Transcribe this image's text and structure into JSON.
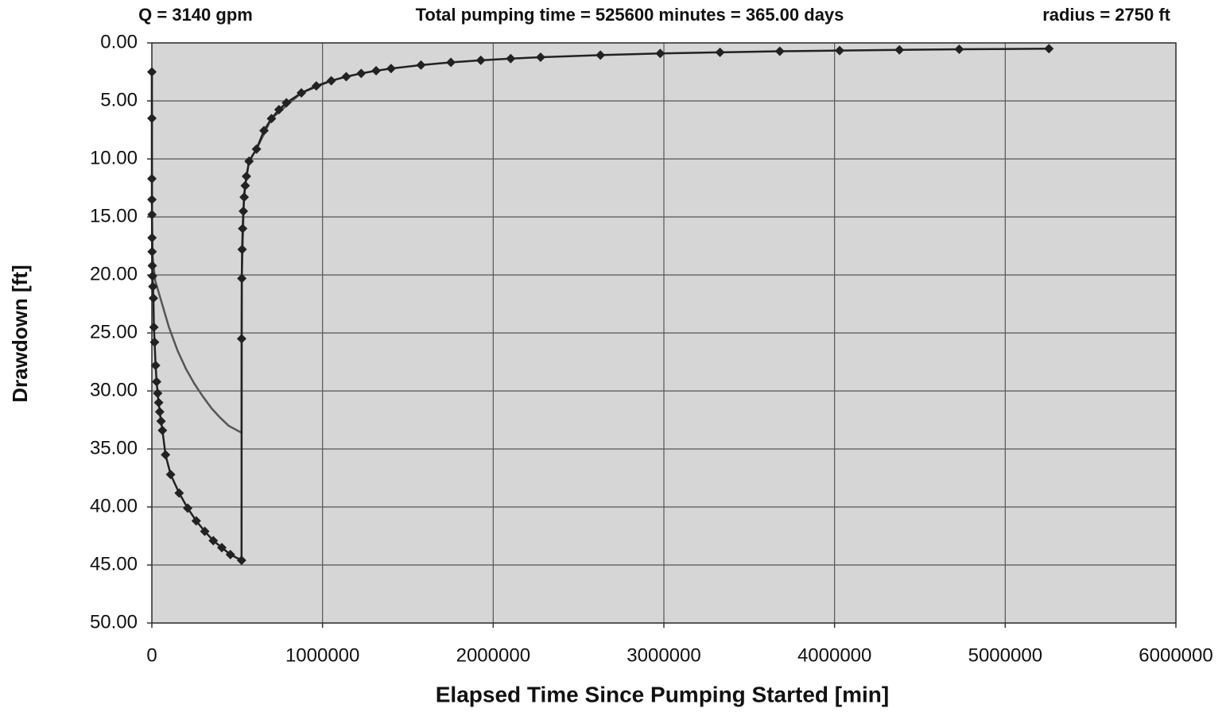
{
  "chart_data": {
    "type": "line",
    "annotations": [
      "Q = 3140 gpm",
      "Total pumping time = 525600 minutes = 365.00 days",
      "radius = 2750 ft"
    ],
    "xlabel": "Elapsed Time Since Pumping Started [min]",
    "ylabel": "Drawdown [ft]",
    "xlim": [
      0,
      6000000
    ],
    "xticks": [
      0,
      1000000,
      2000000,
      3000000,
      4000000,
      5000000,
      6000000
    ],
    "ylim": [
      0,
      50
    ],
    "y_reversed": true,
    "yticks": [
      {
        "value": 0,
        "label": "0.00"
      },
      {
        "value": 5,
        "label": "5.00"
      },
      {
        "value": 10,
        "label": "10.00"
      },
      {
        "value": 15,
        "label": "15.00"
      },
      {
        "value": 20,
        "label": "20.00"
      },
      {
        "value": 25,
        "label": "25.00"
      },
      {
        "value": 30,
        "label": "30.00"
      },
      {
        "value": 35,
        "label": "35.00"
      },
      {
        "value": 40,
        "label": "40.00"
      },
      {
        "value": 45,
        "label": "45.00"
      },
      {
        "value": 50,
        "label": "50.00"
      }
    ],
    "grid": true,
    "background": "#d6d6d6",
    "series": [
      {
        "color": "#222222",
        "marker": "diamond",
        "x": [
          50,
          100,
          200,
          400,
          700,
          1000,
          1500,
          2500,
          4000,
          6000,
          9000,
          12000,
          16000,
          22000,
          28000,
          34000,
          40000,
          46000,
          54000,
          62000,
          80000,
          110000,
          160000,
          210000,
          260000,
          310000,
          360000,
          410000,
          460000,
          525600,
          526000,
          527000,
          529000,
          532000,
          536000,
          541000,
          547000,
          554000,
          569400,
          613200,
          657000,
          700800,
          744600,
          788400,
          876000,
          963600,
          1051200,
          1138800,
          1226400,
          1314000,
          1401600,
          1576800,
          1752000,
          1927200,
          2102400,
          2277600,
          2628000,
          2978400,
          3328800,
          3679200,
          4029600,
          4380000,
          4730400,
          5256000
        ],
        "values": [
          2.5,
          6.5,
          11.7,
          13.5,
          14.8,
          16.8,
          18,
          19.2,
          20.1,
          21,
          22,
          24.5,
          25.8,
          27.8,
          29.2,
          30.2,
          31,
          31.8,
          32.6,
          33.4,
          35.5,
          37.2,
          38.8,
          40.1,
          41.2,
          42.1,
          42.9,
          43.5,
          44.1,
          44.6,
          25.5,
          20.3,
          17.8,
          16,
          14.5,
          13.3,
          12.3,
          11.5,
          10.2,
          9.15,
          7.56,
          6.52,
          5.75,
          5.16,
          4.31,
          3.71,
          3.26,
          2.91,
          2.63,
          2.4,
          2.21,
          1.91,
          1.68,
          1.5,
          1.35,
          1.23,
          1.05,
          0.91,
          0.81,
          0.72,
          0.66,
          0.6,
          0.55,
          0.5
        ]
      },
      {
        "color": "#555555",
        "marker": "none",
        "x": [
          0,
          1000,
          5000,
          20000,
          50000,
          100000,
          150000,
          200000,
          250000,
          300000,
          350000,
          400000,
          450000,
          525600,
          527000,
          540000,
          569400,
          613200,
          700800,
          876000,
          1051200
        ],
        "values": [
          2.5,
          15,
          18.5,
          20.5,
          22,
          24.5,
          26.5,
          28.1,
          29.4,
          30.5,
          31.5,
          32.3,
          33,
          33.6,
          20,
          13,
          10.2,
          9.15,
          6.52,
          4.31,
          3.26
        ]
      }
    ]
  }
}
